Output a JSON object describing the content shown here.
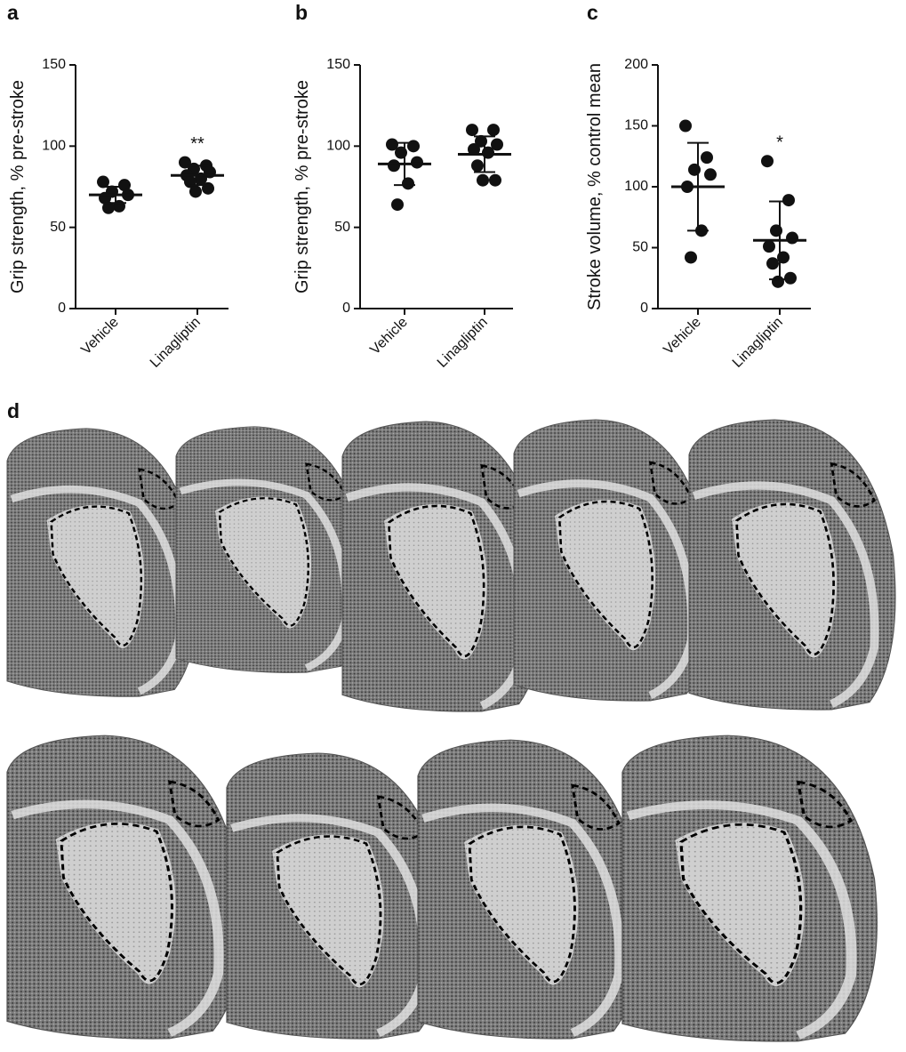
{
  "chart_data": [
    {
      "type": "dotplot",
      "panel_label": "a",
      "ylabel": "Grip strength, % pre-stroke",
      "categories": [
        "Vehicle",
        "Linagliptin"
      ],
      "points": [
        [
          78,
          76,
          72,
          70,
          68,
          63,
          62
        ],
        [
          90,
          88,
          86,
          84,
          82,
          80,
          78,
          74,
          72
        ]
      ],
      "means": [
        70,
        82
      ],
      "sd": [
        5,
        6
      ],
      "annotations": [
        {
          "x": "Linagliptin",
          "text": "**"
        }
      ],
      "ylim": [
        0,
        150
      ],
      "yticks": [
        0,
        50,
        100,
        150
      ],
      "color": "#111111"
    },
    {
      "type": "dotplot",
      "panel_label": "b",
      "ylabel": "Grip strength, % pre-stroke",
      "categories": [
        "Vehicle",
        "Linagliptin"
      ],
      "points": [
        [
          101,
          100,
          96,
          90,
          88,
          77,
          64
        ],
        [
          110,
          110,
          103,
          101,
          98,
          96,
          88,
          79,
          79
        ]
      ],
      "means": [
        89,
        95
      ],
      "sd": [
        13,
        11
      ],
      "ylim": [
        0,
        150
      ],
      "yticks": [
        0,
        50,
        100,
        150
      ],
      "color": "#111111"
    },
    {
      "type": "dotplot",
      "panel_label": "c",
      "ylabel": "Stroke volume, % control mean",
      "categories": [
        "Vehicle",
        "Linagliptin"
      ],
      "points": [
        [
          150,
          124,
          114,
          110,
          100,
          64,
          42
        ],
        [
          121,
          89,
          64,
          58,
          51,
          42,
          37,
          25,
          22
        ]
      ],
      "means": [
        100,
        56
      ],
      "sd": [
        36,
        32
      ],
      "annotations": [
        {
          "x": "Linagliptin",
          "text": "*"
        }
      ],
      "ylim": [
        0,
        200
      ],
      "yticks": [
        0,
        50,
        100,
        150,
        200
      ],
      "color": "#111111"
    }
  ],
  "image_panel": {
    "label": "d"
  }
}
